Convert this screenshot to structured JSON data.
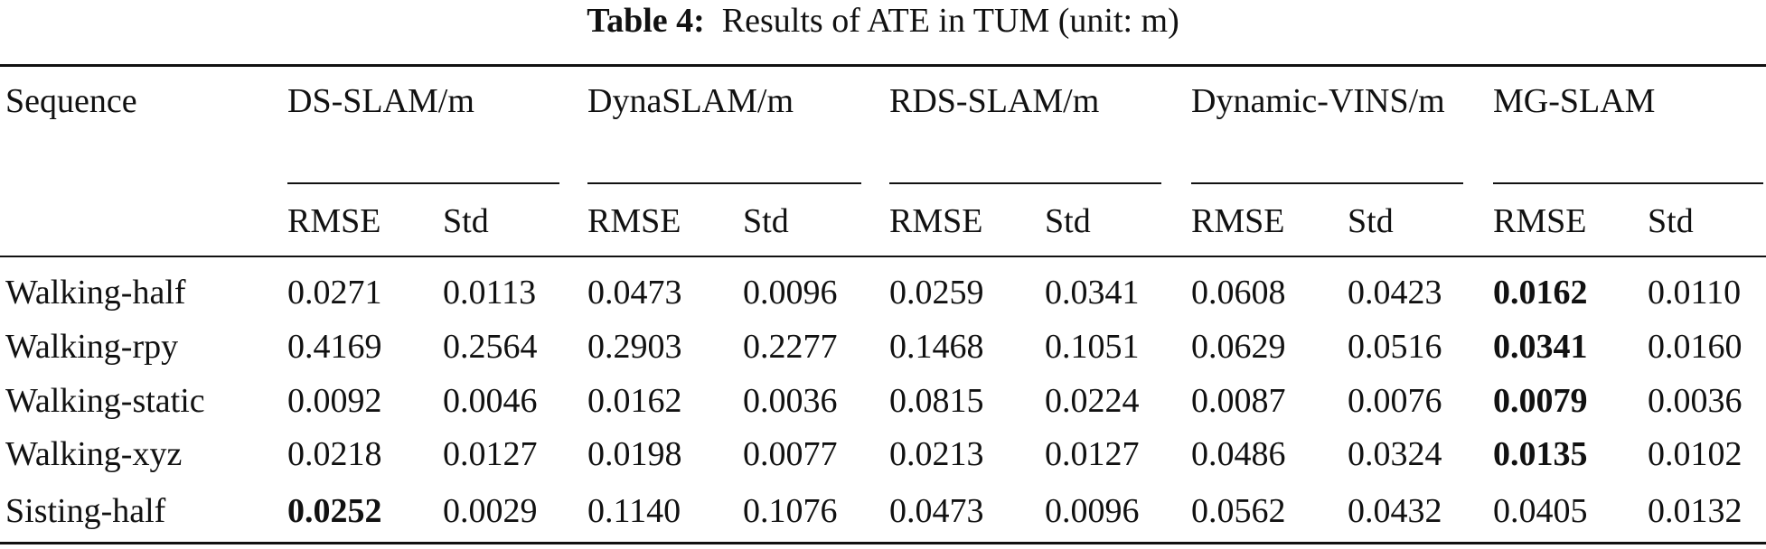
{
  "caption": {
    "label": "Table 4:",
    "text": "Results of ATE in TUM (unit: m)"
  },
  "table": {
    "header": [
      "Sequence",
      "DS-SLAM/m",
      "DynaSLAM/m",
      "RDS-SLAM/m",
      "Dynamic-VINS/m",
      "MG-SLAM"
    ],
    "subheader": [
      "RMSE",
      "Std",
      "RMSE",
      "Std",
      "RMSE",
      "Std",
      "RMSE",
      "Std",
      "RMSE",
      "Std"
    ],
    "rows": [
      [
        "Walking-half",
        "0.0271",
        "0.0113",
        "0.0473",
        "0.0096",
        "0.0259",
        "0.0341",
        "0.0608",
        "0.0423",
        "0.0162",
        "0.0110"
      ],
      [
        "Walking-rpy",
        "0.4169",
        "0.2564",
        "0.2903",
        "0.2277",
        "0.1468",
        "0.1051",
        "0.0629",
        "0.0516",
        "0.0341",
        "0.0160"
      ],
      [
        "Walking-static",
        "0.0092",
        "0.0046",
        "0.0162",
        "0.0036",
        "0.0815",
        "0.0224",
        "0.0087",
        "0.0076",
        "0.0079",
        "0.0036"
      ],
      [
        "Walking-xyz",
        "0.0218",
        "0.0127",
        "0.0198",
        "0.0077",
        "0.0213",
        "0.0127",
        "0.0486",
        "0.0324",
        "0.0135",
        "0.0102"
      ],
      [
        "Sisting-half",
        "0.0252",
        "0.0029",
        "0.1140",
        "0.1076",
        "0.0473",
        "0.0096",
        "0.0562",
        "0.0432",
        "0.0405",
        "0.0132"
      ]
    ],
    "bold_cells": [
      [
        0,
        9
      ],
      [
        1,
        9
      ],
      [
        2,
        9
      ],
      [
        3,
        9
      ],
      [
        4,
        1
      ]
    ]
  }
}
